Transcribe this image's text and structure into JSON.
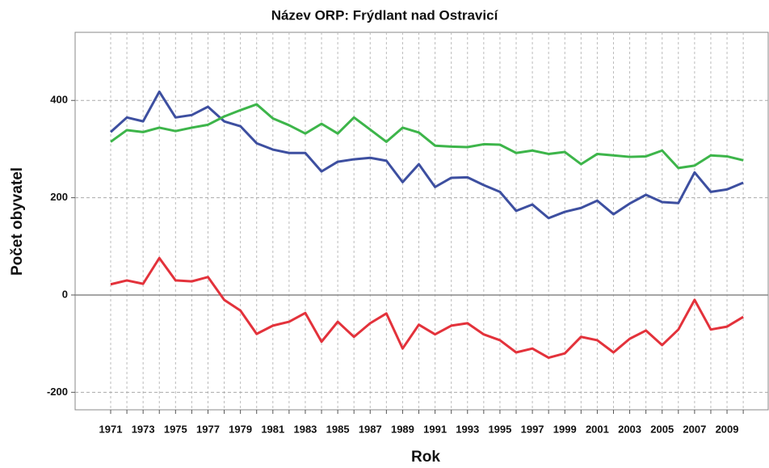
{
  "chart_data": {
    "type": "line",
    "title": "Název ORP: Frýdlant nad Ostravicí",
    "x_label": "Rok",
    "y_label": "Počet obyvatel",
    "categories": [
      "1971",
      null,
      "1973",
      null,
      "1975",
      null,
      "1977",
      null,
      "1979",
      null,
      "1981",
      null,
      "1983",
      null,
      "1985",
      null,
      "1987",
      null,
      "1989",
      null,
      "1991",
      null,
      "1993",
      null,
      "1995",
      null,
      "1997",
      null,
      "1999",
      null,
      "2001",
      null,
      "2003",
      null,
      "2005",
      null,
      "2007",
      null,
      "2009",
      null
    ],
    "series": [
      {
        "color": "#3d4fa0",
        "values": [
          335,
          365,
          357,
          418,
          365,
          370,
          387,
          357,
          347,
          312,
          299,
          292,
          292,
          254,
          274,
          279,
          282,
          276,
          232,
          269,
          222,
          241,
          242,
          226,
          212,
          173,
          186,
          158,
          171,
          179,
          194,
          166,
          188,
          206,
          191,
          189,
          252,
          212,
          217,
          231
        ]
      },
      {
        "color": "#3db54a",
        "values": [
          315,
          339,
          335,
          344,
          337,
          344,
          350,
          367,
          380,
          392,
          363,
          349,
          332,
          352,
          332,
          365,
          340,
          315,
          344,
          334,
          307,
          305,
          304,
          310,
          309,
          292,
          297,
          290,
          294,
          269,
          290,
          287,
          284,
          285,
          297,
          261,
          266,
          287,
          285,
          277
        ]
      },
      {
        "color": "#e3323b",
        "values": [
          22,
          30,
          23,
          76,
          30,
          28,
          37,
          -10,
          -32,
          -80,
          -63,
          -55,
          -37,
          -96,
          -55,
          -86,
          -58,
          -38,
          -110,
          -61,
          -81,
          -63,
          -58,
          -81,
          -93,
          -118,
          -110,
          -129,
          -120,
          -86,
          -93,
          -118,
          -90,
          -73,
          -103,
          -71,
          -10,
          -71,
          -65,
          -45
        ]
      }
    ],
    "ylim": [
      -236,
      540
    ],
    "yticks": [
      -200,
      0,
      200,
      400
    ],
    "grid": true
  }
}
